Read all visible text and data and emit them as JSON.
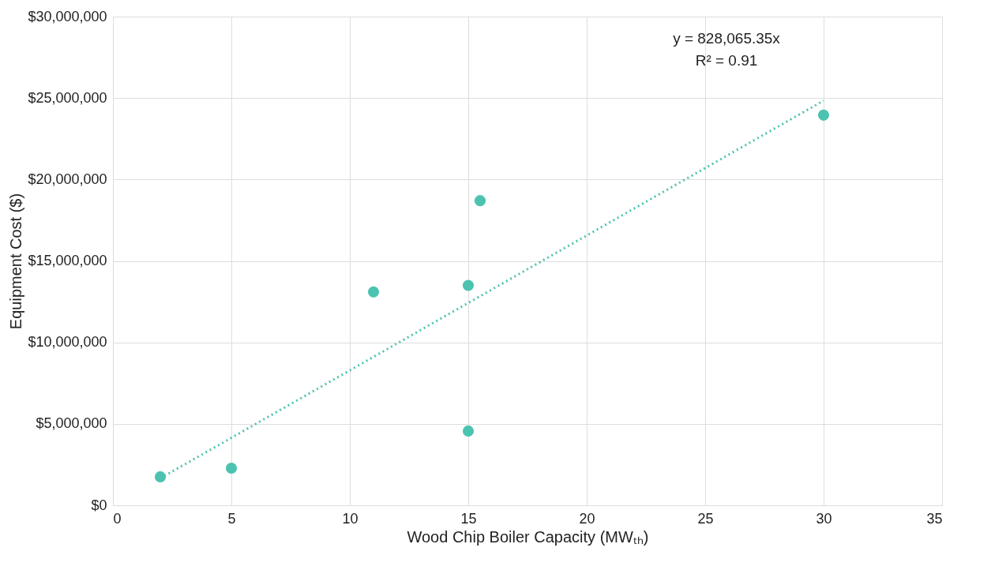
{
  "chart_data": {
    "type": "scatter",
    "xlabel": "Wood Chip Boiler Capacity (MWₜₕ)",
    "ylabel": "Equipment Cost ($)",
    "x": [
      2,
      5,
      11,
      15,
      15,
      15.5,
      30
    ],
    "series": [
      {
        "color": "#4cc3b0",
        "values": [
          1750000,
          2280000,
          13100000,
          13500000,
          4560000,
          18700000,
          23950000
        ],
        "marker": "circle"
      },
      {
        "type": "line",
        "color": "#4cc3b0",
        "x": [
          2,
          30
        ],
        "values": [
          1660000,
          24840000
        ],
        "line_style": "dotted",
        "marker": "none"
      }
    ],
    "xlim": [
      0,
      35
    ],
    "xticks": [
      0,
      5,
      10,
      15,
      20,
      25,
      30,
      35
    ],
    "ylim": [
      0,
      30000000
    ],
    "yticks": [
      {
        "value": 0,
        "label": "$0"
      },
      {
        "value": 5000000,
        "label": "$5,000,000"
      },
      {
        "value": 10000000,
        "label": "$10,000,000"
      },
      {
        "value": 15000000,
        "label": "$15,000,000"
      },
      {
        "value": 20000000,
        "label": "$20,000,000"
      },
      {
        "value": 25000000,
        "label": "$25,000,000"
      },
      {
        "value": 30000000,
        "label": "$30,000,000"
      }
    ],
    "annotations": [
      "y = 828,065.35x",
      "R² = 0.91"
    ],
    "grid": true
  }
}
